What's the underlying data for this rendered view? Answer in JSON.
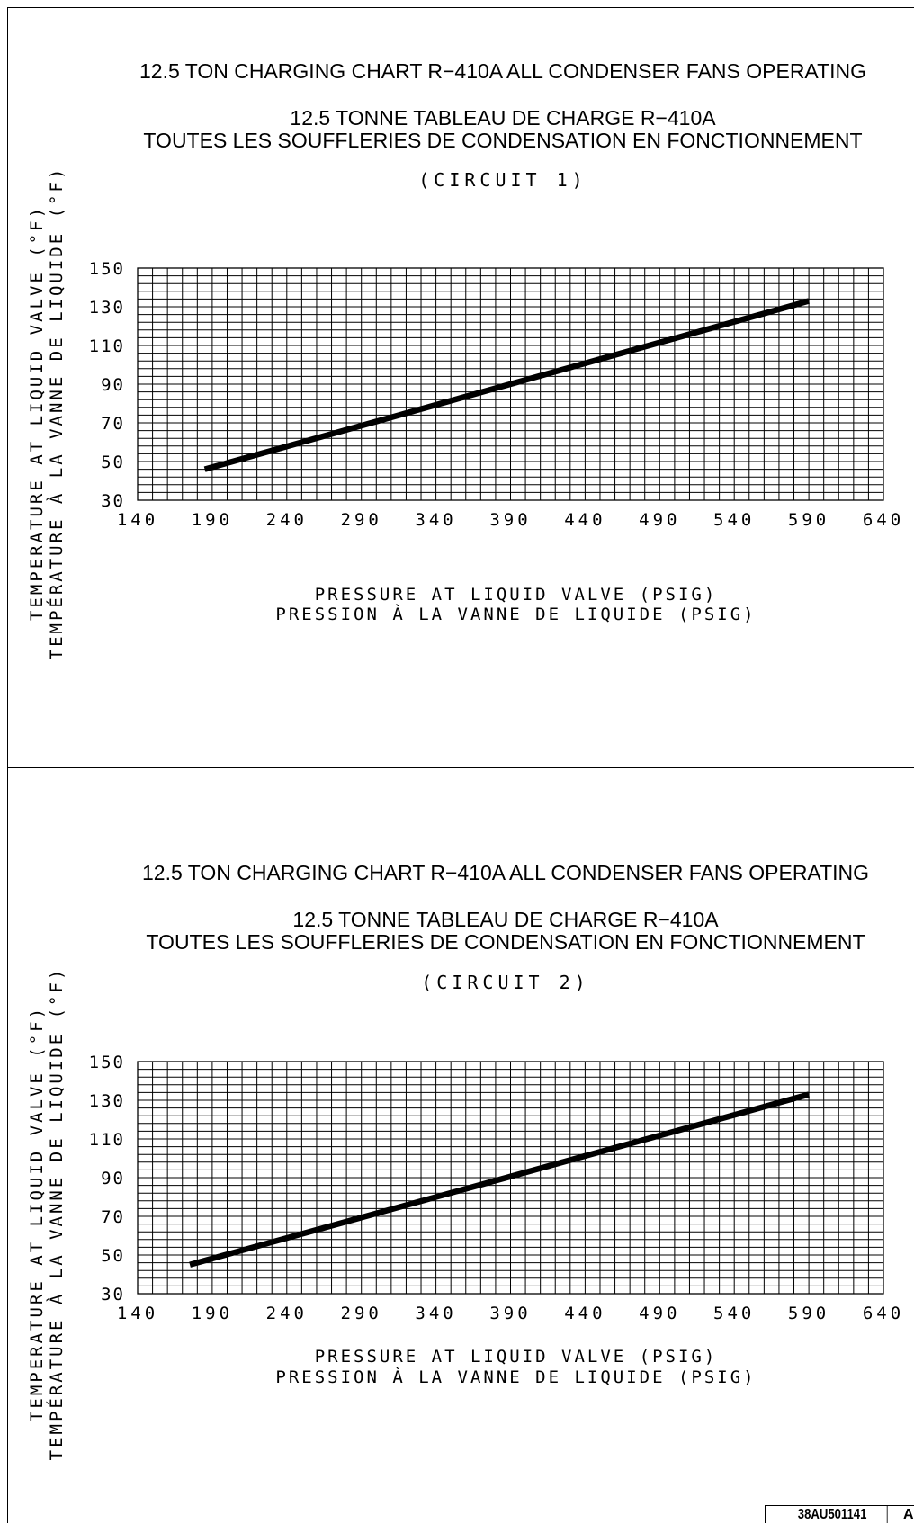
{
  "chart_data": [
    {
      "type": "line",
      "title": "12.5 TON CHARGING CHART R−410A ALL CONDENSER FANS OPERATING",
      "subtitle_lines": [
        "12.5 TONNE TABLEAU DE CHARGE R−410A",
        "TOUTES LES SOUFFLERIES DE CONDENSATION EN FONCTIONNEMENT"
      ],
      "circuit": "(CIRCUIT 1)",
      "xlabel_lines": [
        "PRESSURE AT LIQUID VALVE (PSIG)",
        "PRESSION À LA VANNE DE LIQUIDE (PSIG)"
      ],
      "ylabel_lines": [
        "TEMPERATURE AT LIQUID VALVE (°F)",
        "TEMPÉRATURE À LA VANNE DE LIQUIDE (°F)"
      ],
      "xlim": [
        140,
        640
      ],
      "ylim": [
        30,
        150
      ],
      "xticks": [
        140,
        190,
        240,
        290,
        340,
        390,
        440,
        490,
        540,
        590,
        640
      ],
      "yticks": [
        30,
        50,
        70,
        90,
        110,
        130,
        150
      ],
      "grid": true,
      "x": [
        185,
        590
      ],
      "y": [
        46,
        133
      ]
    },
    {
      "type": "line",
      "title": "12.5 TON CHARGING CHART R−410A ALL CONDENSER FANS OPERATING",
      "subtitle_lines": [
        "12.5 TONNE TABLEAU DE CHARGE R−410A",
        "TOUTES LES SOUFFLERIES DE CONDENSATION EN FONCTIONNEMENT"
      ],
      "circuit": "(CIRCUIT 2)",
      "xlabel_lines": [
        "PRESSURE AT LIQUID VALVE (PSIG)",
        "PRESSION À LA VANNE DE LIQUIDE (PSIG)"
      ],
      "ylabel_lines": [
        "TEMPERATURE AT LIQUID VALVE (°F)",
        "TEMPÉRATURE À LA VANNE DE LIQUIDE (°F)"
      ],
      "xlim": [
        140,
        640
      ],
      "ylim": [
        30,
        150
      ],
      "xticks": [
        140,
        190,
        240,
        290,
        340,
        390,
        440,
        490,
        540,
        590,
        640
      ],
      "yticks": [
        30,
        50,
        70,
        90,
        110,
        130,
        150
      ],
      "grid": true,
      "x": [
        175,
        590
      ],
      "y": [
        45,
        133
      ]
    }
  ],
  "doc_code": {
    "number": "38AU501141",
    "revision": "A"
  }
}
